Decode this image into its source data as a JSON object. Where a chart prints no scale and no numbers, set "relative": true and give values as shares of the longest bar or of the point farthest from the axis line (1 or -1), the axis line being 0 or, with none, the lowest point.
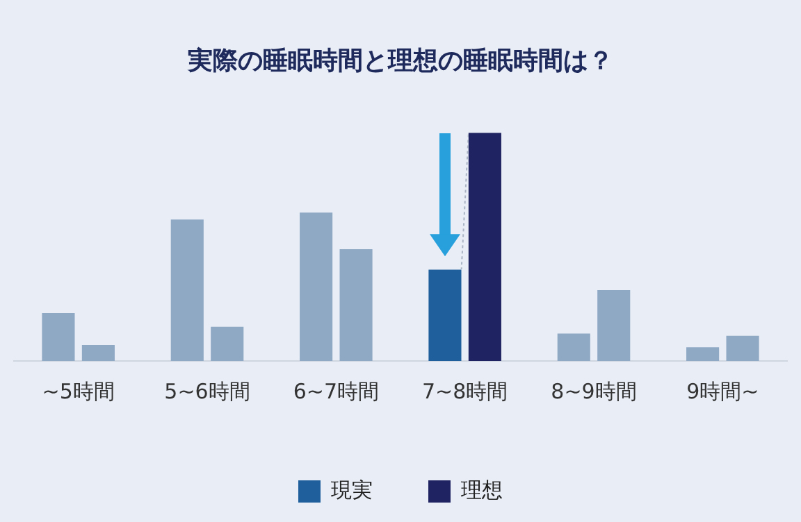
{
  "chart_data": {
    "type": "bar",
    "title": "実際の睡眠時間と理想の睡眠時間は？",
    "relative": true,
    "legend": "bottom",
    "grid": false,
    "categories": [
      "~5時間",
      "5~6時間",
      "6~7時間",
      "7~8時間",
      "8~9時間",
      "9時間~"
    ],
    "series": [
      {
        "name": "現実",
        "color": "#1e5f9c",
        "colors": [
          "#8fa8c4",
          "#8fa8c4",
          "#8fa8c4",
          "#1e5f9c",
          "#8fa8c4",
          "#8fa8c4"
        ],
        "values": [
          0.21,
          0.62,
          0.65,
          0.4,
          0.12,
          0.06
        ]
      },
      {
        "name": "理想",
        "color": "#1f2361",
        "colors": [
          "#8fa8c4",
          "#8fa8c4",
          "#8fa8c4",
          "#1f2361",
          "#8fa8c4",
          "#8fa8c4"
        ],
        "values": [
          0.07,
          0.15,
          0.49,
          1,
          0.31,
          0.11
        ]
      }
    ]
  }
}
